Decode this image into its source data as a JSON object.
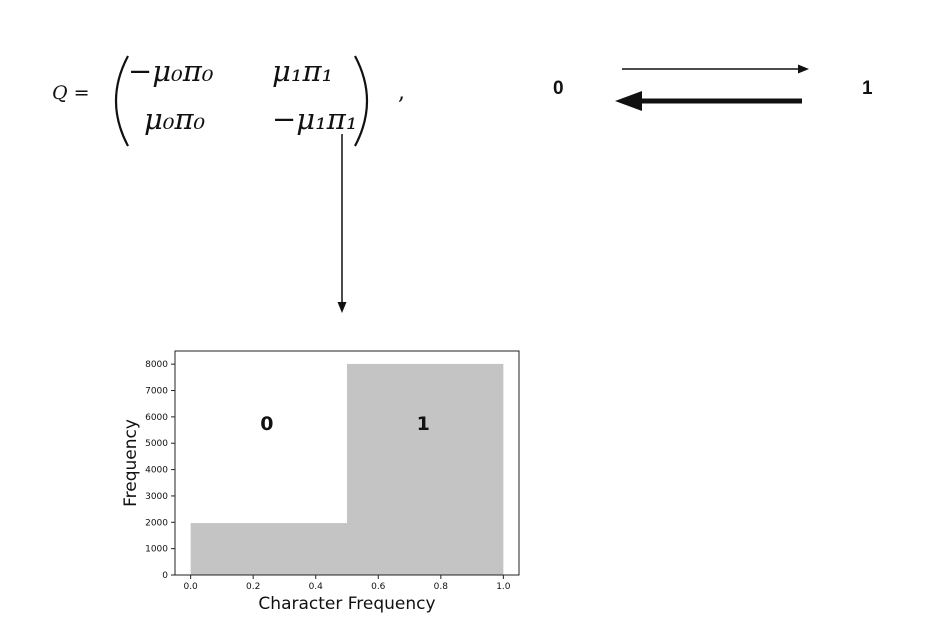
{
  "matrix": {
    "lhs": "Q =",
    "trailing": ",",
    "cells": [
      [
        "−μ₀π₀",
        "μ₁π₁"
      ],
      [
        "μ₀π₀",
        "−μ₁π₁"
      ]
    ]
  },
  "states": {
    "left": "0",
    "right": "1"
  },
  "chart_data": {
    "type": "bar",
    "title": "",
    "xlabel": "Character Frequency",
    "ylabel": "Frequency",
    "bins": [
      [
        0.0,
        0.5
      ],
      [
        0.5,
        1.0
      ]
    ],
    "values": [
      1970,
      8010
    ],
    "bin_labels": [
      "0",
      "1"
    ],
    "xlim": [
      -0.05,
      1.05
    ],
    "ylim": [
      0,
      8500
    ],
    "xticks": [
      0.0,
      0.2,
      0.4,
      0.6,
      0.8,
      1.0
    ],
    "xtick_labels": [
      "0.0",
      "0.2",
      "0.4",
      "0.6",
      "0.8",
      "1.0"
    ],
    "yticks": [
      0,
      1000,
      2000,
      3000,
      4000,
      5000,
      6000,
      7000,
      8000
    ],
    "ytick_labels": [
      "0",
      "1000",
      "2000",
      "3000",
      "4000",
      "5000",
      "6000",
      "7000",
      "8000"
    ],
    "bar_color": "#c4c4c4",
    "grid": false,
    "legend": "none"
  }
}
